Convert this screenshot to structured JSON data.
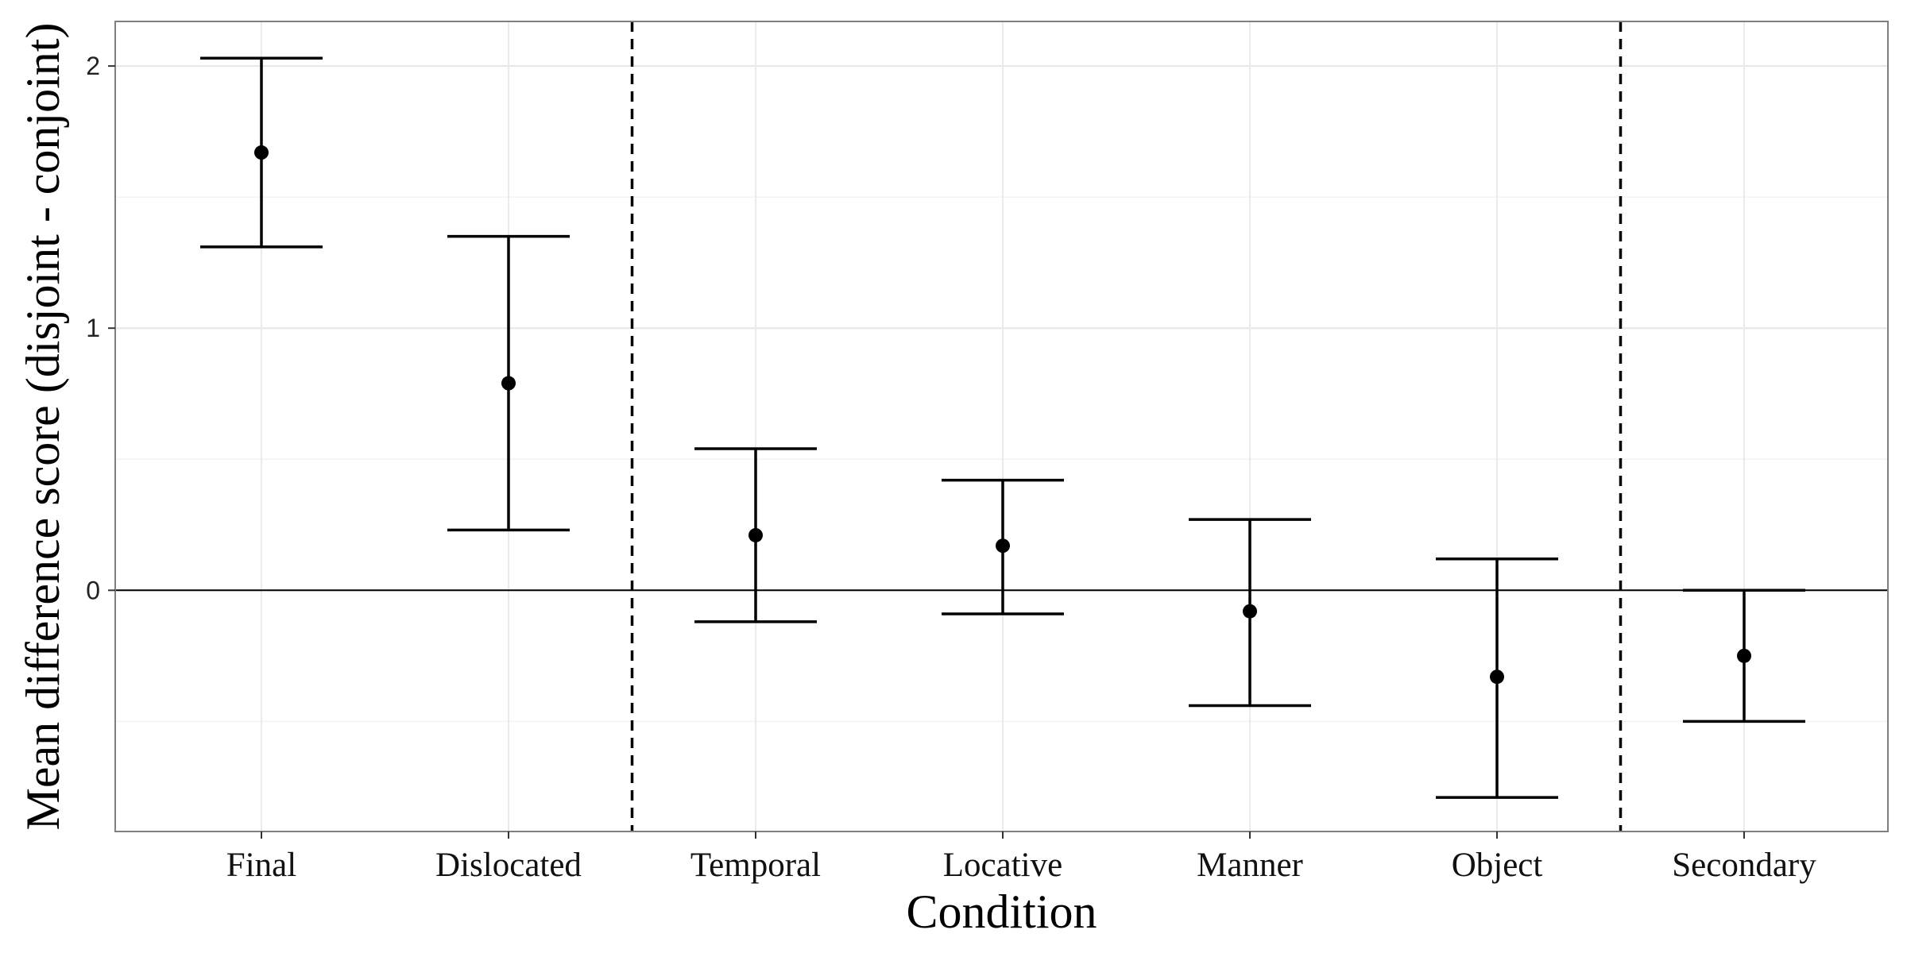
{
  "chart_data": {
    "type": "scatter",
    "subtype": "point-with-errorbars",
    "title": "",
    "xlabel": "Condition",
    "ylabel": "Mean difference score (disjoint - conjoint)",
    "categories": [
      "Final",
      "Dislocated",
      "Temporal",
      "Locative",
      "Manner",
      "Object",
      "Secondary"
    ],
    "series": [
      {
        "mean": [
          1.67,
          0.79,
          0.21,
          0.17,
          -0.08,
          -0.33,
          -0.25
        ],
        "lower": [
          1.31,
          0.23,
          -0.12,
          -0.09,
          -0.44,
          -0.79,
          -0.5
        ],
        "upper": [
          2.03,
          1.35,
          0.54,
          0.42,
          0.27,
          0.12,
          0.0
        ]
      }
    ],
    "ylim": [
      -0.92,
      2.17
    ],
    "yticks": [
      0,
      1,
      2
    ],
    "reference_line_y": 0,
    "group_separators_after": [
      "Dislocated",
      "Object"
    ],
    "grid": true,
    "legend": "none",
    "colors": {
      "marks": "#000000",
      "grid": "#ebebeb",
      "panel_border": "#7f7f7f"
    }
  }
}
